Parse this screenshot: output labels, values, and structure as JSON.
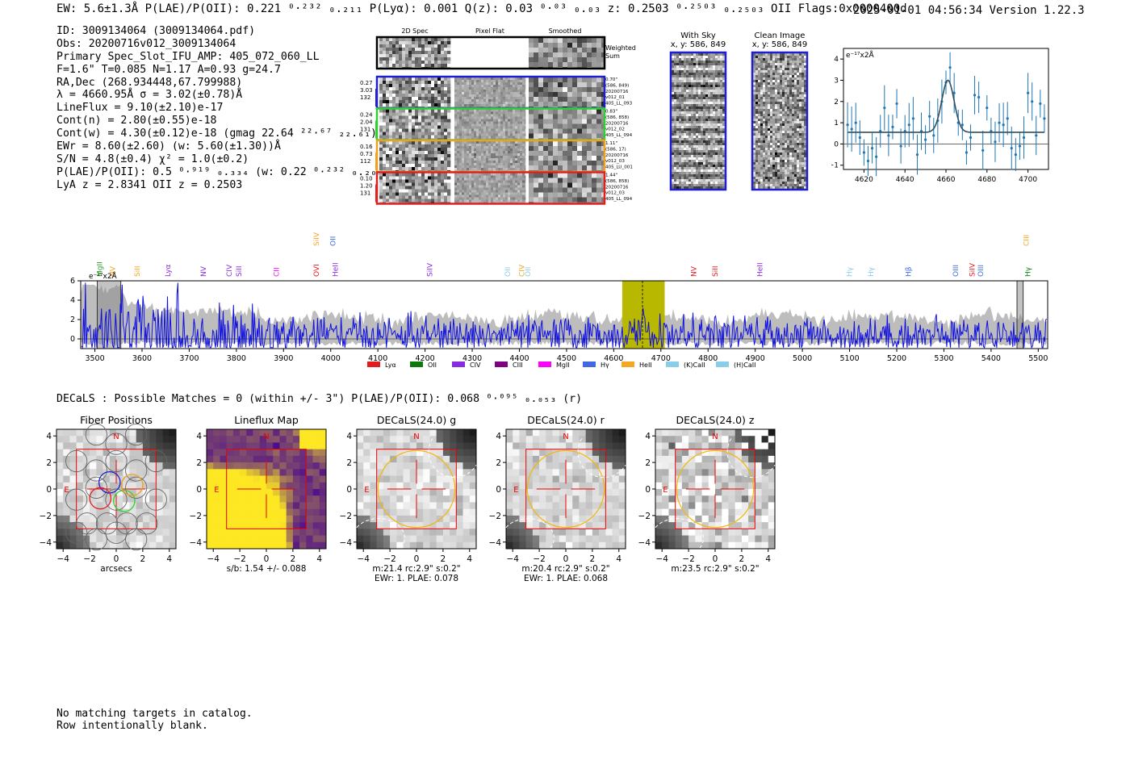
{
  "header": {
    "summary": "EW: 5.6±1.3Å  P(LAE)/P(OII): 0.221 ⁰·²³² ₀.₂₁₁  P(Lyα): 0.001  Q(z): 0.03 ⁰·⁰³ ₀.₀₃  z: 0.2503 ⁰·²⁵⁰³ ₀.₂₅₀₃ OII   Flags:0x0000400d",
    "timestamp_version": "2025-01-01 04:56:34  Version 1.22.3"
  },
  "info": [
    "ID: 3009134064 (3009134064.pdf)",
    "Obs: 20200716v012_3009134064",
    "Primary Spec_Slot_IFU_AMP: 405_072_060_LL",
    "F=1.6\"  T=0.085  N=1.17  A=0.93  g=24.7",
    "RA,Dec (268.934448,67.799988)",
    "λ = 4660.95Å  σ = 3.02(±0.78)Å",
    "LineFlux = 9.10(±2.10)e-17",
    "Cont(n) = 2.80(±0.55)e-18",
    "Cont(w) = 4.30(±0.12)e-18 (gmag 22.64 ²²·⁶⁷ ₂₂.₆₁)",
    "EWr = 8.60(±2.60) (w: 5.60(±1.30))Å",
    "S/N = 4.8(±0.4)  χ² = 1.0(±0.2)",
    "P(LAE)/P(OII): 0.5 ⁰·⁹¹⁹ ₀.₃₃₄ (w: 0.22 ⁰·²³² ₀.₂₀₉)",
    "LyA z = 2.8341  OII z = 0.2503"
  ],
  "cutouts": {
    "col_labels": [
      "2D Spec",
      "Pixel Flat",
      "Smoothed"
    ],
    "weighted_sum": [
      "Weighted",
      "Sum"
    ],
    "rows": [
      {
        "left": [
          "0.27",
          "3.03",
          "132"
        ],
        "right": [
          "0.70\"",
          "(586, 849)",
          "20200716",
          "v012_01",
          "405_LL_093"
        ],
        "color": "#1f1fd0"
      },
      {
        "left": [
          "0.24",
          "2.04",
          "131"
        ],
        "right": [
          "0.83\"",
          "(586, 858)",
          "20200716",
          "v012_02",
          "405_LL_094"
        ],
        "color": "#2fd02f"
      },
      {
        "left": [
          "0.16",
          "0.73",
          "112"
        ],
        "right": [
          "1.11\"",
          "(586, 17)",
          "20200716",
          "v012_03",
          "405_LU_001"
        ],
        "color": "#f0a020"
      },
      {
        "left": [
          "0.10",
          "1.20",
          "131"
        ],
        "right": [
          "1.44\"",
          "(586, 858)",
          "20200716",
          "v012_03",
          "405_LL_094"
        ],
        "color": "#e02020"
      }
    ]
  },
  "sky": {
    "with_sky": [
      "With Sky",
      "x, y: 586, 849"
    ],
    "clean": [
      "Clean Image",
      "x, y: 586, 849"
    ]
  },
  "fit_plot": {
    "unit": "e⁻¹⁷x2Å",
    "xticks": [
      "4620",
      "4640",
      "4660",
      "4680",
      "4700"
    ],
    "yticks": [
      "4",
      "3",
      "2",
      "1",
      "0",
      "−1"
    ]
  },
  "full_spectrum": {
    "unit": "e⁻¹⁷x2Å",
    "xticks": [
      "3500",
      "3600",
      "3700",
      "3800",
      "3900",
      "4000",
      "4100",
      "4200",
      "4300",
      "4400",
      "4500",
      "4600",
      "4700",
      "4800",
      "4900",
      "5000",
      "5100",
      "5200",
      "5300",
      "5400",
      "5500"
    ],
    "yticks": [
      "6",
      "4",
      "2",
      "0"
    ],
    "legend": [
      {
        "label": "Lyα",
        "color": "#e41a1c"
      },
      {
        "label": "OII",
        "color": "#0a7a0a"
      },
      {
        "label": "CIV",
        "color": "#8a2be2"
      },
      {
        "label": "CIII",
        "color": "#800080"
      },
      {
        "label": "MgII",
        "color": "#ff00ff"
      },
      {
        "label": "Hγ",
        "color": "#4169e1"
      },
      {
        "label": "HeII",
        "color": "#f5a623"
      },
      {
        "label": "(K)CaII",
        "color": "#87ceeb"
      },
      {
        "label": "(H)CaII",
        "color": "#87ceeb"
      }
    ],
    "lines": [
      {
        "label": "MgII",
        "x": 3510,
        "color": "#2ca02c",
        "row": 2
      },
      {
        "label": "NV",
        "x": 3538,
        "color": "#f5a623",
        "row": 2
      },
      {
        "label": "SiII",
        "x": 3590,
        "color": "#f5a623",
        "row": 2
      },
      {
        "label": "Lyα",
        "x": 3655,
        "color": "#8a2be2",
        "row": 2
      },
      {
        "label": "NV",
        "x": 3730,
        "color": "#8a2be2",
        "row": 2
      },
      {
        "label": "CIV",
        "x": 3785,
        "color": "#8a2be2",
        "row": 2
      },
      {
        "label": "SiII",
        "x": 3805,
        "color": "#8a2be2",
        "row": 2
      },
      {
        "label": "CII",
        "x": 3885,
        "color": "#ff00ff",
        "row": 2
      },
      {
        "label": "SiIV",
        "x": 3970,
        "color": "#f5a623",
        "row": 1
      },
      {
        "label": "OVI",
        "x": 3970,
        "color": "#e41a1c",
        "row": 2
      },
      {
        "label": "OII",
        "x": 4005,
        "color": "#4169e1",
        "row": 1
      },
      {
        "label": "HeII",
        "x": 4010,
        "color": "#8a2be2",
        "row": 2
      },
      {
        "label": "SiIV",
        "x": 4210,
        "color": "#8a2be2",
        "row": 2
      },
      {
        "label": "OII",
        "x": 4375,
        "color": "#87ceeb",
        "row": 2
      },
      {
        "label": "CIV",
        "x": 4405,
        "color": "#f5a623",
        "row": 2
      },
      {
        "label": "OII",
        "x": 4418,
        "color": "#87ceeb",
        "row": 2
      },
      {
        "label": "NV",
        "x": 4770,
        "color": "#e41a1c",
        "row": 2
      },
      {
        "label": "SiII",
        "x": 4815,
        "color": "#e41a1c",
        "row": 2
      },
      {
        "label": "HeII",
        "x": 4910,
        "color": "#8a2be2",
        "row": 2
      },
      {
        "label": "Hγ",
        "x": 5100,
        "color": "#87ceeb",
        "row": 2
      },
      {
        "label": "Hγ",
        "x": 5145,
        "color": "#87ceeb",
        "row": 2
      },
      {
        "label": "Hβ",
        "x": 5225,
        "color": "#4169e1",
        "row": 2
      },
      {
        "label": "OIII",
        "x": 5325,
        "color": "#4169e1",
        "row": 2
      },
      {
        "label": "SiIV",
        "x": 5360,
        "color": "#e41a1c",
        "row": 2
      },
      {
        "label": "OIII",
        "x": 5378,
        "color": "#4169e1",
        "row": 2
      },
      {
        "label": "CIII",
        "x": 5475,
        "color": "#f5a623",
        "row": 1
      },
      {
        "label": "Hγ",
        "x": 5478,
        "color": "#0a7a0a",
        "row": 2
      }
    ]
  },
  "decals_line": "DECaLS : Possible Matches = 0 (within +/- 3\")  P(LAE)/P(OII): 0.068 ⁰·⁰⁹⁵ ₀.₀₅₃ (r)",
  "panels": [
    {
      "title": "Fiber Positions",
      "caption": [
        "arcsecs"
      ]
    },
    {
      "title": "Lineflux Map",
      "caption": [
        "s/b: 1.54 +/- 0.088"
      ]
    },
    {
      "title": "DECaLS(24.0) g",
      "caption": [
        "m:21.4 rc:2.9\"  s:0.2\"",
        "EWr: 1. PLAE: 0.078"
      ]
    },
    {
      "title": "DECaLS(24.0) r",
      "caption": [
        "m:20.4 rc:2.9\"  s:0.2\"",
        "EWr: 1. PLAE: 0.068"
      ]
    },
    {
      "title": "DECaLS(24.0) z",
      "caption": [
        "m:23.5 rc:2.9\"  s:0.2\""
      ]
    }
  ],
  "panel_axes": {
    "ticks": [
      "4",
      "2",
      "0",
      "−2",
      "−4"
    ],
    "xticks": [
      "−4",
      "−2",
      "0",
      "2",
      "4"
    ],
    "north": "N",
    "east": "E"
  },
  "footer": [
    "No matching targets in catalog.",
    "Row intentionally blank."
  ],
  "chart_data": [
    {
      "type": "line",
      "title": "",
      "ylabel": "e⁻¹⁷x2Å",
      "xlim": [
        4610,
        4710
      ],
      "ylim": [
        -1.2,
        4.5
      ],
      "x": [
        4612,
        4614,
        4616,
        4618,
        4620,
        4622,
        4624,
        4626,
        4628,
        4630,
        4632,
        4634,
        4636,
        4638,
        4640,
        4642,
        4644,
        4646,
        4648,
        4650,
        4652,
        4654,
        4656,
        4658,
        4660,
        4662,
        4664,
        4666,
        4668,
        4670,
        4672,
        4674,
        4676,
        4678,
        4680,
        4682,
        4684,
        4686,
        4688,
        4690,
        4692,
        4694,
        4696,
        4698,
        4700,
        4702,
        4704,
        4706,
        4708
      ],
      "y": [
        0.9,
        0.7,
        1.0,
        0.3,
        -0.4,
        -0.8,
        -0.2,
        -0.6,
        0.6,
        1.7,
        0.4,
        0.8,
        1.9,
        -0.1,
        0.6,
        0.9,
        1.2,
        -0.5,
        0.6,
        0.2,
        1.3,
        0.4,
        1.1,
        2.0,
        2.9,
        3.6,
        2.4,
        1.0,
        0.9,
        -0.4,
        0.3,
        2.3,
        2.2,
        -0.3,
        1.7,
        0.6,
        0.1,
        1.0,
        0.9,
        1.2,
        -0.2,
        -0.5,
        -0.1,
        0.3,
        2.4,
        2.0,
        0.4,
        1.9,
        1.2
      ],
      "fit": {
        "continuum": 0.55,
        "amplitude": 2.45,
        "center": 4660.95,
        "sigma": 3.02
      }
    },
    {
      "type": "line",
      "title": "",
      "ylabel": "e⁻¹⁷x2Å",
      "xlim": [
        3470,
        5520
      ],
      "ylim": [
        -1,
        6
      ],
      "highlight": [
        4618,
        4708
      ],
      "line_center": 4661
    }
  ]
}
